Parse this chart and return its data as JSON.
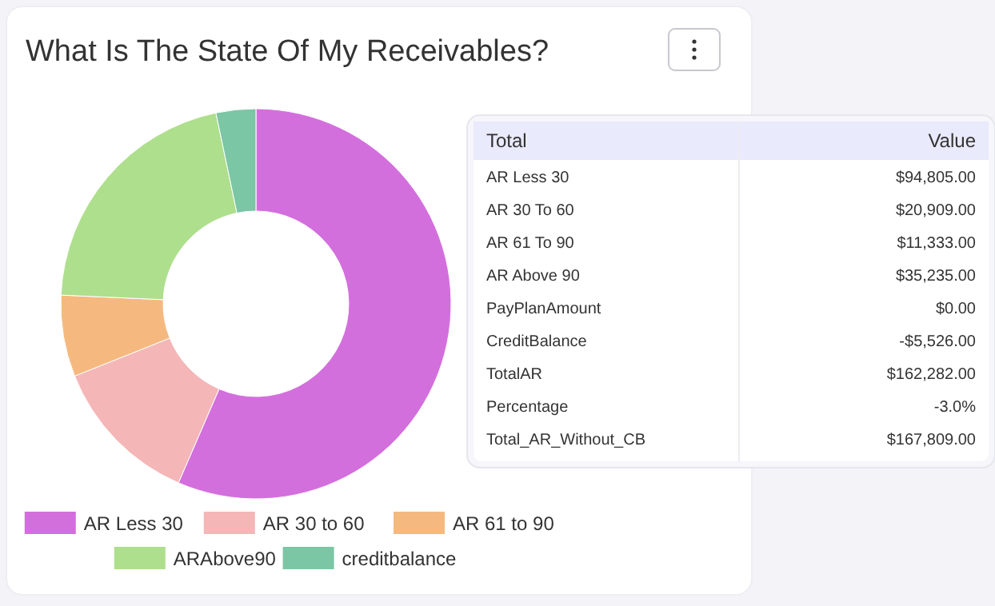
{
  "chart_data": [
    {
      "type": "donut",
      "title": "What Is The State Of My Receivables?",
      "categories": [
        "AR Less 30",
        "AR 30 to 60",
        "AR 61 to 90",
        "ARAbove90",
        "creditbalance"
      ],
      "values": [
        56.5,
        12.46,
        6.75,
        21.0,
        3.29
      ],
      "colors": [
        "#d36fdd",
        "#f4b6b7",
        "#f5b97f",
        "#aedf8d",
        "#7bc6a4"
      ],
      "legend": "bottom"
    },
    {
      "type": "other",
      "xlabel": "Total",
      "ylabel": "Value",
      "categories": [
        "AR Less 30",
        "AR 30 To 60",
        "AR 61 To 90",
        "AR Above 90",
        "PayPlanAmount",
        "CreditBalance",
        "TotalAR",
        "Percentage",
        "Total_AR_Without_CB"
      ],
      "value_labels": [
        "$94,805.00",
        "$20,909.00",
        "$11,333.00",
        "$35,235.00",
        "$0.00",
        "-$5,526.00",
        "$162,282.00",
        "-3.0%",
        "$167,809.00"
      ]
    }
  ]
}
